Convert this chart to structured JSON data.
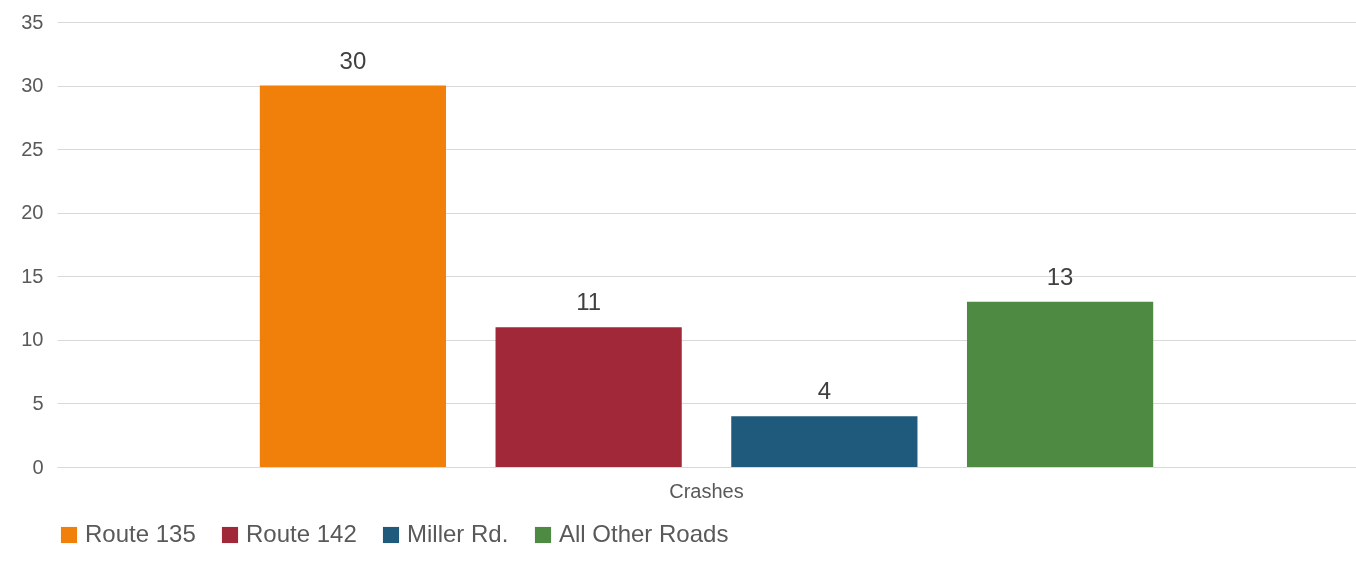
{
  "chart_data": {
    "type": "bar",
    "categories": [
      "Crashes"
    ],
    "series": [
      {
        "name": "Route 135",
        "color": "#f0800a",
        "values": [
          30
        ]
      },
      {
        "name": "Route 142",
        "color": "#a02838",
        "values": [
          11
        ]
      },
      {
        "name": "Miller Rd.",
        "color": "#1f5a7c",
        "values": [
          4
        ]
      },
      {
        "name": "All Other Roads",
        "color": "#4e8a42",
        "values": [
          13
        ]
      }
    ],
    "ylim": [
      0,
      35
    ],
    "yticks": [
      0,
      5,
      10,
      15,
      20,
      25,
      30,
      35
    ],
    "grid": "y",
    "legend": "bottom",
    "data_labels": true
  }
}
